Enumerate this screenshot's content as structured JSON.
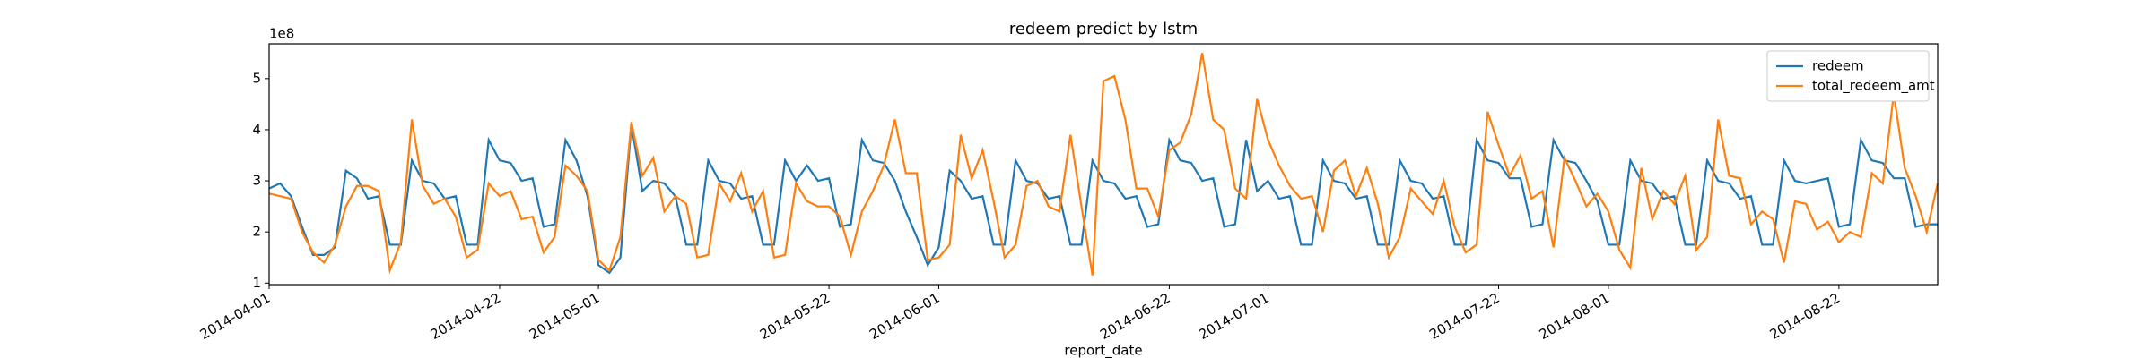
{
  "chart_data": {
    "type": "line",
    "title": "redeem predict by lstm",
    "x_label": "report_date",
    "y_offset_label": "1e8",
    "x": [
      "2014-04-01",
      "2014-04-02",
      "2014-04-03",
      "2014-04-04",
      "2014-04-05",
      "2014-04-06",
      "2014-04-07",
      "2014-04-08",
      "2014-04-09",
      "2014-04-10",
      "2014-04-11",
      "2014-04-12",
      "2014-04-13",
      "2014-04-14",
      "2014-04-15",
      "2014-04-16",
      "2014-04-17",
      "2014-04-18",
      "2014-04-19",
      "2014-04-20",
      "2014-04-21",
      "2014-04-22",
      "2014-04-23",
      "2014-04-24",
      "2014-04-25",
      "2014-04-26",
      "2014-04-27",
      "2014-04-28",
      "2014-04-29",
      "2014-04-30",
      "2014-05-01",
      "2014-05-02",
      "2014-05-03",
      "2014-05-04",
      "2014-05-05",
      "2014-05-06",
      "2014-05-07",
      "2014-05-08",
      "2014-05-09",
      "2014-05-10",
      "2014-05-11",
      "2014-05-12",
      "2014-05-13",
      "2014-05-14",
      "2014-05-15",
      "2014-05-16",
      "2014-05-17",
      "2014-05-18",
      "2014-05-19",
      "2014-05-20",
      "2014-05-21",
      "2014-05-22",
      "2014-05-23",
      "2014-05-24",
      "2014-05-25",
      "2014-05-26",
      "2014-05-27",
      "2014-05-28",
      "2014-05-29",
      "2014-05-30",
      "2014-05-31",
      "2014-06-01",
      "2014-06-02",
      "2014-06-03",
      "2014-06-04",
      "2014-06-05",
      "2014-06-06",
      "2014-06-07",
      "2014-06-08",
      "2014-06-09",
      "2014-06-10",
      "2014-06-11",
      "2014-06-12",
      "2014-06-13",
      "2014-06-14",
      "2014-06-15",
      "2014-06-16",
      "2014-06-17",
      "2014-06-18",
      "2014-06-19",
      "2014-06-20",
      "2014-06-21",
      "2014-06-22",
      "2014-06-23",
      "2014-06-24",
      "2014-06-25",
      "2014-06-26",
      "2014-06-27",
      "2014-06-28",
      "2014-06-29",
      "2014-06-30",
      "2014-07-01",
      "2014-07-02",
      "2014-07-03",
      "2014-07-04",
      "2014-07-05",
      "2014-07-06",
      "2014-07-07",
      "2014-07-08",
      "2014-07-09",
      "2014-07-10",
      "2014-07-11",
      "2014-07-12",
      "2014-07-13",
      "2014-07-14",
      "2014-07-15",
      "2014-07-16",
      "2014-07-17",
      "2014-07-18",
      "2014-07-19",
      "2014-07-20",
      "2014-07-21",
      "2014-07-22",
      "2014-07-23",
      "2014-07-24",
      "2014-07-25",
      "2014-07-26",
      "2014-07-27",
      "2014-07-28",
      "2014-07-29",
      "2014-07-30",
      "2014-07-31",
      "2014-08-01",
      "2014-08-02",
      "2014-08-03",
      "2014-08-04",
      "2014-08-05",
      "2014-08-06",
      "2014-08-07",
      "2014-08-08",
      "2014-08-09",
      "2014-08-10",
      "2014-08-11",
      "2014-08-12",
      "2014-08-13",
      "2014-08-14",
      "2014-08-15",
      "2014-08-16",
      "2014-08-17",
      "2014-08-18",
      "2014-08-19",
      "2014-08-20",
      "2014-08-21",
      "2014-08-22",
      "2014-08-23",
      "2014-08-24",
      "2014-08-25",
      "2014-08-26",
      "2014-08-27",
      "2014-08-28",
      "2014-08-29",
      "2014-08-30",
      "2014-08-31"
    ],
    "series": [
      {
        "name": "redeem",
        "color": "#1f77b4",
        "values": [
          2.85,
          2.95,
          2.7,
          2.1,
          1.55,
          1.55,
          1.7,
          3.2,
          3.05,
          2.65,
          2.7,
          1.75,
          1.75,
          3.4,
          3.0,
          2.95,
          2.65,
          2.7,
          1.75,
          1.75,
          3.8,
          3.4,
          3.35,
          3.0,
          3.05,
          2.1,
          2.15,
          3.8,
          3.4,
          2.7,
          1.35,
          1.2,
          1.5,
          4.1,
          2.8,
          3.0,
          2.95,
          2.7,
          1.75,
          1.75,
          3.4,
          3.0,
          2.95,
          2.65,
          2.7,
          1.75,
          1.75,
          3.4,
          3.0,
          3.3,
          3.0,
          3.05,
          2.1,
          2.15,
          3.8,
          3.4,
          3.35,
          3.0,
          2.4,
          1.9,
          1.35,
          1.7,
          3.2,
          3.0,
          2.65,
          2.7,
          1.75,
          1.75,
          3.4,
          3.0,
          2.95,
          2.65,
          2.7,
          1.75,
          1.75,
          3.4,
          3.0,
          2.95,
          2.65,
          2.7,
          2.1,
          2.15,
          3.8,
          3.4,
          3.35,
          3.0,
          3.05,
          2.1,
          2.15,
          3.8,
          2.8,
          3.0,
          2.65,
          2.7,
          1.75,
          1.75,
          3.4,
          3.0,
          2.95,
          2.65,
          2.7,
          1.75,
          1.75,
          3.4,
          3.0,
          2.95,
          2.65,
          2.7,
          1.75,
          1.75,
          3.8,
          3.4,
          3.35,
          3.05,
          3.05,
          2.1,
          2.15,
          3.8,
          3.4,
          3.35,
          3.0,
          2.6,
          1.75,
          1.75,
          3.4,
          3.0,
          2.95,
          2.65,
          2.7,
          1.75,
          1.75,
          3.4,
          3.0,
          2.95,
          2.65,
          2.7,
          1.75,
          1.75,
          3.4,
          3.0,
          2.95,
          3.0,
          3.05,
          2.1,
          2.15,
          3.8,
          3.4,
          3.35,
          3.05,
          3.05,
          2.1,
          2.15,
          2.15
        ]
      },
      {
        "name": "total_redeem_amt",
        "color": "#ff7f0e",
        "values": [
          2.75,
          2.7,
          2.65,
          2.0,
          1.6,
          1.4,
          1.75,
          2.5,
          2.9,
          2.9,
          2.8,
          1.25,
          1.8,
          4.2,
          2.9,
          2.55,
          2.65,
          2.3,
          1.5,
          1.65,
          2.95,
          2.7,
          2.8,
          2.25,
          2.3,
          1.6,
          1.9,
          3.3,
          3.1,
          2.8,
          1.45,
          1.25,
          1.9,
          4.15,
          3.1,
          3.45,
          2.4,
          2.7,
          2.55,
          1.5,
          1.55,
          2.95,
          2.6,
          3.15,
          2.4,
          2.8,
          1.5,
          1.55,
          2.95,
          2.6,
          2.5,
          2.5,
          2.3,
          1.55,
          2.4,
          2.8,
          3.3,
          4.2,
          3.15,
          3.15,
          1.45,
          1.5,
          1.75,
          3.9,
          3.05,
          3.6,
          2.6,
          1.5,
          1.75,
          2.9,
          3.0,
          2.5,
          2.4,
          3.9,
          2.5,
          1.15,
          4.95,
          5.05,
          4.2,
          2.85,
          2.85,
          2.3,
          3.6,
          3.75,
          4.3,
          5.5,
          4.2,
          4.0,
          2.85,
          2.65,
          4.6,
          3.8,
          3.3,
          2.9,
          2.65,
          2.7,
          2.0,
          3.2,
          3.4,
          2.7,
          3.25,
          2.55,
          1.5,
          1.9,
          2.85,
          2.6,
          2.35,
          3.0,
          2.1,
          1.6,
          1.75,
          4.35,
          3.7,
          3.1,
          3.5,
          2.65,
          2.8,
          1.7,
          3.45,
          3.0,
          2.5,
          2.75,
          2.4,
          1.65,
          1.3,
          3.25,
          2.25,
          2.8,
          2.55,
          3.1,
          1.65,
          1.9,
          4.2,
          3.1,
          3.05,
          2.15,
          2.4,
          2.25,
          1.4,
          2.6,
          2.55,
          2.05,
          2.2,
          1.8,
          2.0,
          1.9,
          3.15,
          2.95,
          4.7,
          3.25,
          2.7,
          2.0,
          2.95
        ]
      }
    ],
    "xlim": [
      "2014-04-01",
      "2014-08-31"
    ],
    "xticks": [
      "2014-04-01",
      "2014-04-22",
      "2014-05-01",
      "2014-05-22",
      "2014-06-01",
      "2014-06-22",
      "2014-07-01",
      "2014-07-22",
      "2014-08-01",
      "2014-08-22"
    ],
    "ylim": [
      0.97,
      5.68
    ],
    "yticks": [
      1,
      2,
      3,
      4,
      5
    ],
    "grid": false,
    "legend": "upper right"
  }
}
